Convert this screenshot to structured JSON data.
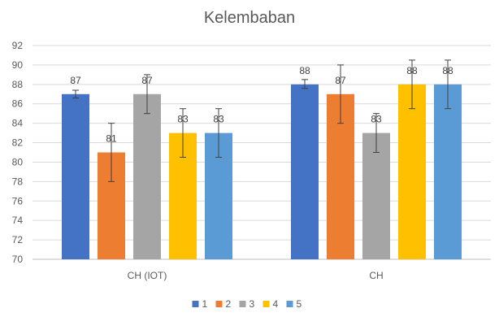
{
  "chart_data": {
    "type": "bar",
    "title": "Kelembaban",
    "categories": [
      "CH (IOT)",
      "CH"
    ],
    "series": [
      {
        "name": "1",
        "color": "#4472C4",
        "values": [
          87,
          88
        ],
        "error": [
          [
            86.6,
            87.4
          ],
          [
            87.6,
            88.5
          ]
        ]
      },
      {
        "name": "2",
        "color": "#ED7D31",
        "values": [
          81,
          87
        ],
        "error": [
          [
            78,
            84
          ],
          [
            84,
            90
          ]
        ]
      },
      {
        "name": "3",
        "color": "#A5A5A5",
        "values": [
          87,
          83
        ],
        "error": [
          [
            85,
            89
          ],
          [
            81,
            85
          ]
        ]
      },
      {
        "name": "4",
        "color": "#FFC000",
        "values": [
          83,
          88
        ],
        "error": [
          [
            80.5,
            85.5
          ],
          [
            85.5,
            90.5
          ]
        ]
      },
      {
        "name": "5",
        "color": "#5B9BD5",
        "values": [
          83,
          88
        ],
        "error": [
          [
            80.5,
            85.5
          ],
          [
            85.5,
            90.5
          ]
        ]
      }
    ],
    "xlabel": "",
    "ylabel": "",
    "ylim": [
      70,
      92
    ],
    "yticks": [
      70,
      72,
      74,
      76,
      78,
      80,
      82,
      84,
      86,
      88,
      90,
      92
    ],
    "grid": true,
    "legend": "bottom"
  }
}
